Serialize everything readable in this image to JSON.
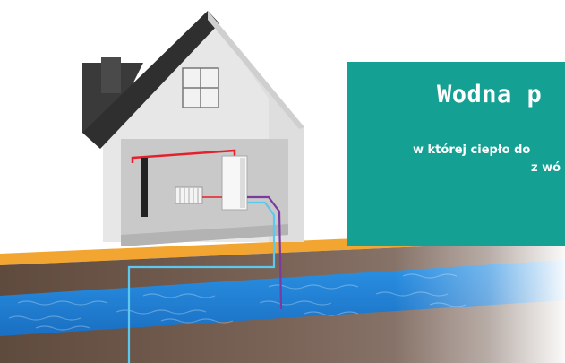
{
  "panel": {
    "title": "Wodna p",
    "subtitle_line1": "w której ciepło do",
    "subtitle_line2": "z wó"
  },
  "colors": {
    "panel_bg": "#14a093",
    "ground_strip": "#f2a531",
    "soil": "#6b5548",
    "aquifer": "#1f7fd0",
    "pipe_cold": "#5cc8ee",
    "pipe_warm": "#7a3aa0",
    "pipe_hot": "#e5202b",
    "house_wall": "#e6e6e6",
    "house_roof": "#3b3b3b"
  }
}
